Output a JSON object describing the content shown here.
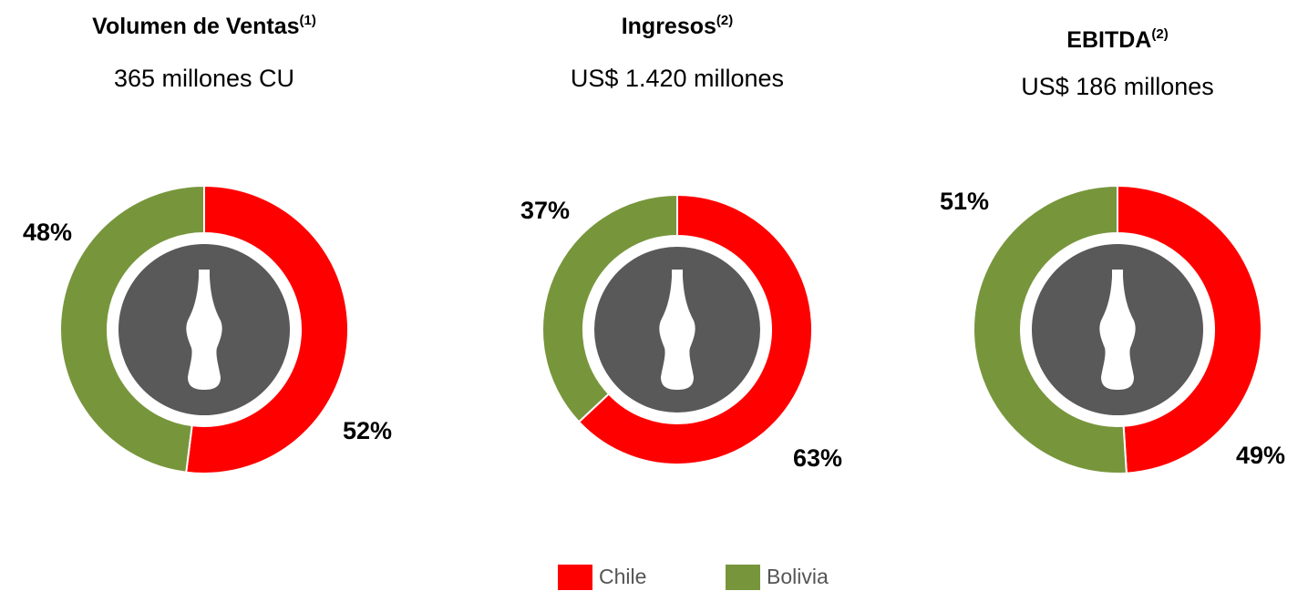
{
  "chart_data": [
    {
      "type": "donut",
      "title": "Volumen de Ventas",
      "title_superscript": "(1)",
      "subtitle": "365 millones CU",
      "categories": [
        "Chile",
        "Bolivia"
      ],
      "values": [
        52,
        48
      ],
      "value_labels": [
        "52%",
        "48%"
      ],
      "colors": [
        "#ff0000",
        "#77963c"
      ]
    },
    {
      "type": "donut",
      "title": "Ingresos",
      "title_superscript": "(2)",
      "subtitle": "US$ 1.420 millones",
      "categories": [
        "Chile",
        "Bolivia"
      ],
      "values": [
        63,
        37
      ],
      "value_labels": [
        "63%",
        "37%"
      ],
      "colors": [
        "#ff0000",
        "#77963c"
      ]
    },
    {
      "type": "donut",
      "title": "EBITDA",
      "title_superscript": "(2)",
      "subtitle": "US$ 186 millones",
      "categories": [
        "Chile",
        "Bolivia"
      ],
      "values": [
        49,
        51
      ],
      "value_labels": [
        "49%",
        "51%"
      ],
      "colors": [
        "#ff0000",
        "#77963c"
      ]
    }
  ]
}
